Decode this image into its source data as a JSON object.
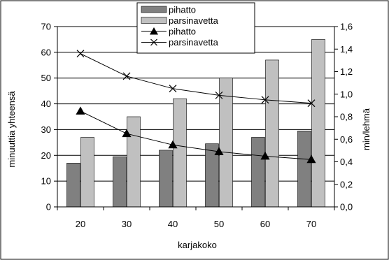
{
  "chart_data": {
    "type": "bar",
    "categories": [
      "20",
      "30",
      "40",
      "50",
      "60",
      "70"
    ],
    "xlabel": "karjakoko",
    "ylabel_left": "minuuttia yhteensä",
    "ylabel_right": "min/lehmä",
    "y_left": {
      "min": 0,
      "max": 70,
      "step": 10,
      "ticks": [
        "0",
        "10",
        "20",
        "30",
        "40",
        "50",
        "60",
        "70"
      ]
    },
    "y_right": {
      "min": 0,
      "max": 1.6,
      "step": 0.2,
      "ticks": [
        "0,0",
        "0,2",
        "0,4",
        "0,6",
        "0,8",
        "1,0",
        "1,2",
        "1,4",
        "1,6"
      ]
    },
    "grid": true,
    "legend_position": "top-center",
    "bar_series": [
      {
        "name": "pihatto",
        "axis": "left",
        "color": "#808080",
        "values": [
          17,
          19.5,
          22,
          24.5,
          27,
          29.5
        ]
      },
      {
        "name": "parsinavetta",
        "axis": "left",
        "color": "#c0c0c0",
        "values": [
          27,
          35,
          42,
          50,
          57,
          65
        ]
      }
    ],
    "line_series": [
      {
        "name": "pihatto",
        "axis": "right",
        "marker": "triangle",
        "values": [
          0.85,
          0.65,
          0.55,
          0.49,
          0.45,
          0.42
        ]
      },
      {
        "name": "parsinavetta",
        "axis": "right",
        "marker": "x",
        "values": [
          1.36,
          1.16,
          1.05,
          0.99,
          0.95,
          0.92
        ]
      }
    ]
  }
}
